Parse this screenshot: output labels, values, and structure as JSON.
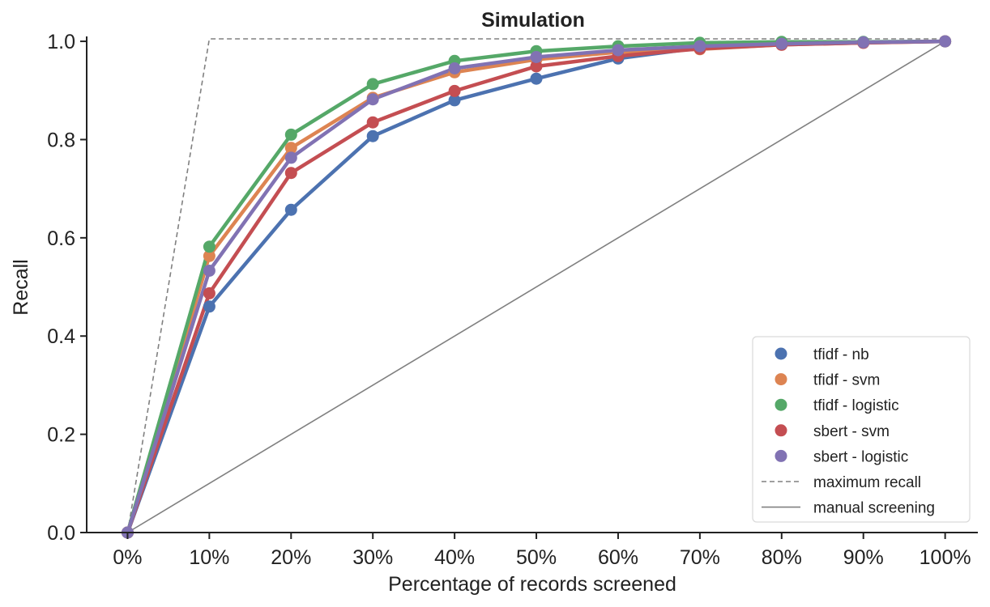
{
  "chart_data": {
    "type": "line",
    "title": "Simulation",
    "xlabel": "Percentage of records screened",
    "ylabel": "Recall",
    "x": [
      0,
      10,
      20,
      30,
      40,
      50,
      60,
      70,
      80,
      90,
      100
    ],
    "x_tick_labels": [
      "0%",
      "10%",
      "20%",
      "30%",
      "40%",
      "50%",
      "60%",
      "70%",
      "80%",
      "90%",
      "100%"
    ],
    "y_ticks": [
      0.0,
      0.2,
      0.4,
      0.6,
      0.8,
      1.0
    ],
    "y_tick_labels": [
      "0.0",
      "0.2",
      "0.4",
      "0.6",
      "0.8",
      "1.0"
    ],
    "xlim": [
      -5,
      104
    ],
    "ylim": [
      0.0,
      1.01
    ],
    "grid": false,
    "legend_position": "lower-right",
    "series": [
      {
        "name": "tfidf - nb",
        "color": "#4c72b0",
        "values": [
          0.0,
          0.46,
          0.657,
          0.807,
          0.88,
          0.924,
          0.965,
          0.987,
          0.995,
          0.998,
          1.0
        ]
      },
      {
        "name": "tfidf - svm",
        "color": "#dd8452",
        "values": [
          0.0,
          0.563,
          0.783,
          0.885,
          0.937,
          0.963,
          0.978,
          0.984,
          0.993,
          0.997,
          1.0
        ]
      },
      {
        "name": "tfidf - logistic",
        "color": "#55a868",
        "values": [
          0.0,
          0.582,
          0.81,
          0.913,
          0.96,
          0.98,
          0.99,
          0.997,
          0.999,
          0.999,
          1.0
        ]
      },
      {
        "name": "sbert - svm",
        "color": "#c44e52",
        "values": [
          0.0,
          0.487,
          0.732,
          0.835,
          0.899,
          0.949,
          0.97,
          0.985,
          0.993,
          0.997,
          1.0
        ]
      },
      {
        "name": "sbert - logistic",
        "color": "#8172b3",
        "values": [
          0.0,
          0.533,
          0.763,
          0.882,
          0.945,
          0.968,
          0.982,
          0.99,
          0.995,
          0.998,
          1.0
        ]
      }
    ],
    "reference_lines": [
      {
        "name": "maximum recall",
        "style": "dashed",
        "color": "#808080",
        "x": [
          0,
          10,
          100
        ],
        "y": [
          0.0,
          1.005,
          1.005
        ]
      },
      {
        "name": "manual screening",
        "style": "solid",
        "color": "#808080",
        "x": [
          0,
          100
        ],
        "y": [
          0.0,
          1.0
        ]
      }
    ]
  }
}
